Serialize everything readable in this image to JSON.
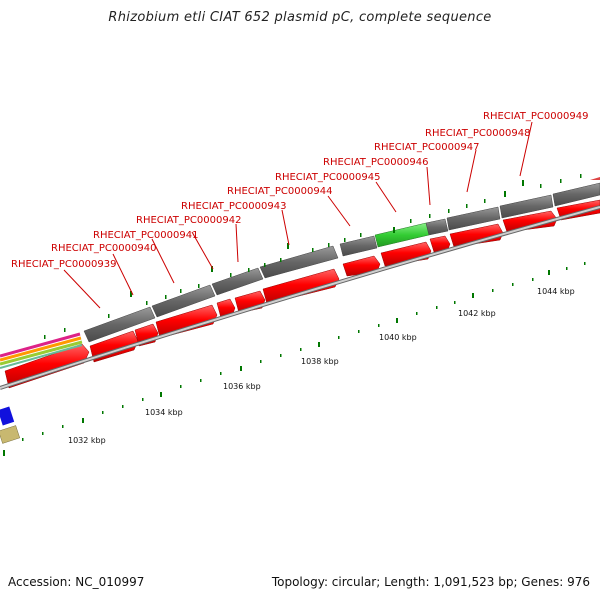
{
  "title": "Rhizobium etli CIAT 652 plasmid pC, complete sequence",
  "footer": {
    "accession": "Accession: NC_010997",
    "summary": "Topology: circular; Length: 1,091,523 bp; Genes: 976"
  },
  "gene_labels": [
    "RHECIAT_PC0000939",
    "RHECIAT_PC0000940",
    "RHECIAT_PC0000941",
    "RHECIAT_PC0000942",
    "RHECIAT_PC0000943",
    "RHECIAT_PC0000944",
    "RHECIAT_PC0000945",
    "RHECIAT_PC0000946",
    "RHECIAT_PC0000947",
    "RHECIAT_PC0000948",
    "RHECIAT_PC0000949"
  ],
  "scale_labels": [
    "1032 kbp",
    "1034 kbp",
    "1036 kbp",
    "1038 kbp",
    "1040 kbp",
    "1042 kbp",
    "1044 kbp"
  ],
  "colors": {
    "gene_label": "#cc0000",
    "cds": "#ff0000",
    "gene_track": "#666666",
    "highlight": "#33cc33",
    "tick": "#007700",
    "backbone": "#999999"
  }
}
